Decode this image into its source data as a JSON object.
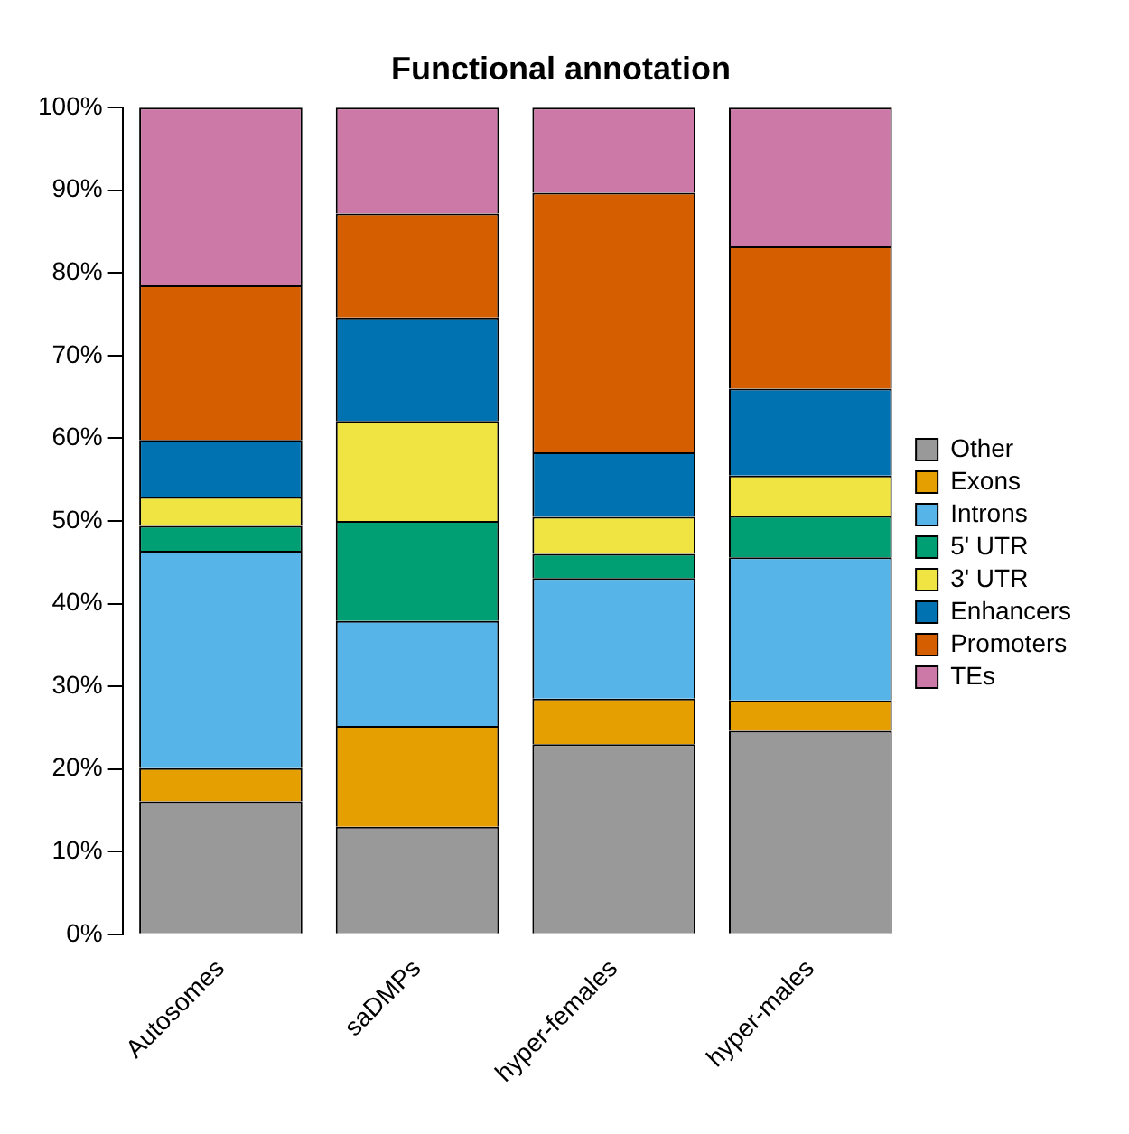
{
  "chart_data": {
    "type": "bar",
    "title": "Functional annotation",
    "categories": [
      "Autosomes",
      "saDMPs",
      "hyper-females",
      "hyper-males"
    ],
    "stacked": true,
    "ylim": [
      0,
      100
    ],
    "yticks": [
      {
        "value": 0,
        "label": "0%"
      },
      {
        "value": 10,
        "label": "10%"
      },
      {
        "value": 20,
        "label": "20%"
      },
      {
        "value": 30,
        "label": "30%"
      },
      {
        "value": 40,
        "label": "40%"
      },
      {
        "value": 50,
        "label": "50%"
      },
      {
        "value": 60,
        "label": "60%"
      },
      {
        "value": 70,
        "label": "70%"
      },
      {
        "value": 80,
        "label": "80%"
      },
      {
        "value": 90,
        "label": "90%"
      },
      {
        "value": 100,
        "label": "100%"
      }
    ],
    "grid": false,
    "legend": "right",
    "series": [
      {
        "name": "Other",
        "color": "#999999",
        "values": [
          16.1,
          13.0,
          23.0,
          24.6
        ]
      },
      {
        "name": "Exons",
        "color": "#e69f00",
        "values": [
          4.0,
          12.2,
          5.5,
          3.7
        ]
      },
      {
        "name": "Introns",
        "color": "#56b4e9",
        "values": [
          26.3,
          12.7,
          14.6,
          17.3
        ]
      },
      {
        "name": "5' UTR",
        "color": "#009e73",
        "values": [
          3.0,
          12.1,
          2.9,
          5.0
        ]
      },
      {
        "name": "3' UTR",
        "color": "#f0e442",
        "values": [
          3.5,
          12.1,
          4.5,
          4.9
        ]
      },
      {
        "name": "Enhancers",
        "color": "#0072b2",
        "values": [
          6.9,
          12.5,
          7.8,
          10.5
        ]
      },
      {
        "name": "Promoters",
        "color": "#d55e00",
        "values": [
          18.7,
          12.6,
          31.4,
          17.2
        ]
      },
      {
        "name": "TEs",
        "color": "#cc79a7",
        "values": [
          21.5,
          12.8,
          10.3,
          16.8
        ]
      }
    ]
  }
}
